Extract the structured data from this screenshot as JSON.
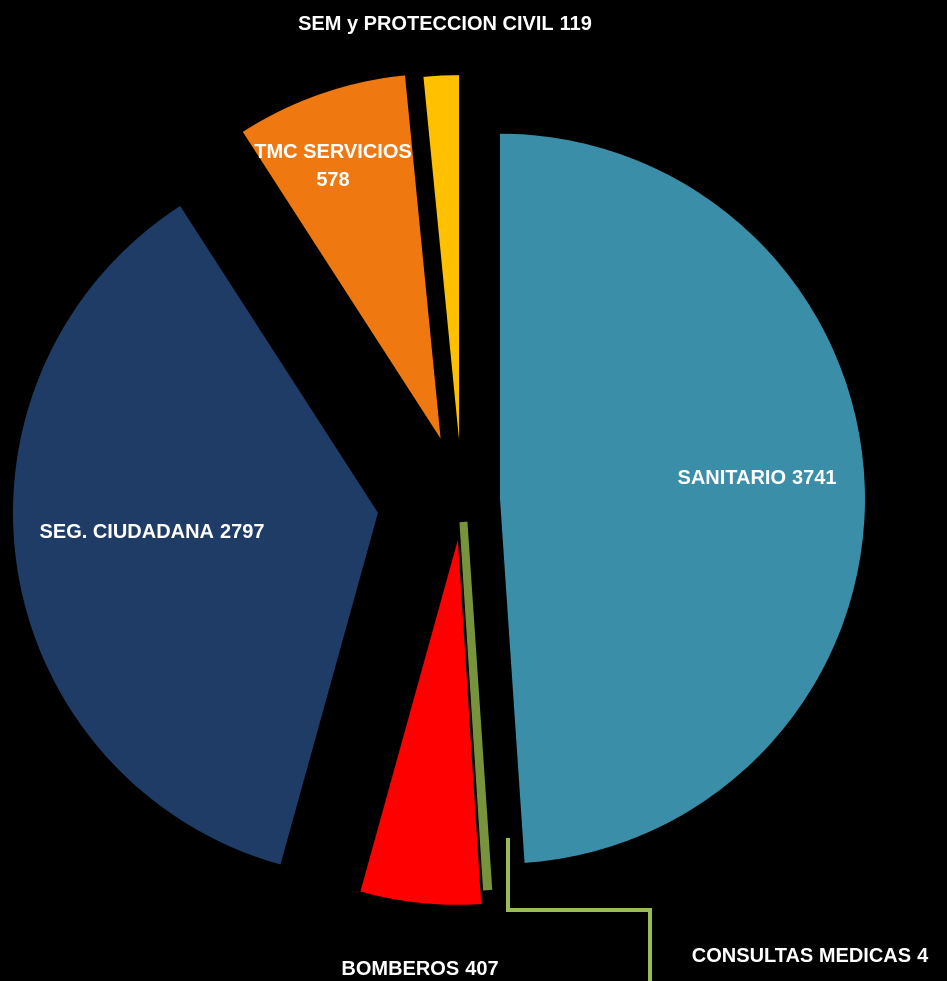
{
  "chart_data": {
    "type": "pie",
    "categories": [
      "SANITARIO",
      "CONSULTAS MEDICAS",
      "BOMBEROS",
      "SEG. CIUDADANA",
      "TMC SERVICIOS",
      "SEM y PROTECCION CIVIL"
    ],
    "values": [
      3741,
      4,
      407,
      2797,
      578,
      119
    ],
    "colors": [
      "#3a8ea8",
      "#77933c",
      "#ff0000",
      "#1f3c66",
      "#f07810",
      "#ffc000"
    ]
  }
}
